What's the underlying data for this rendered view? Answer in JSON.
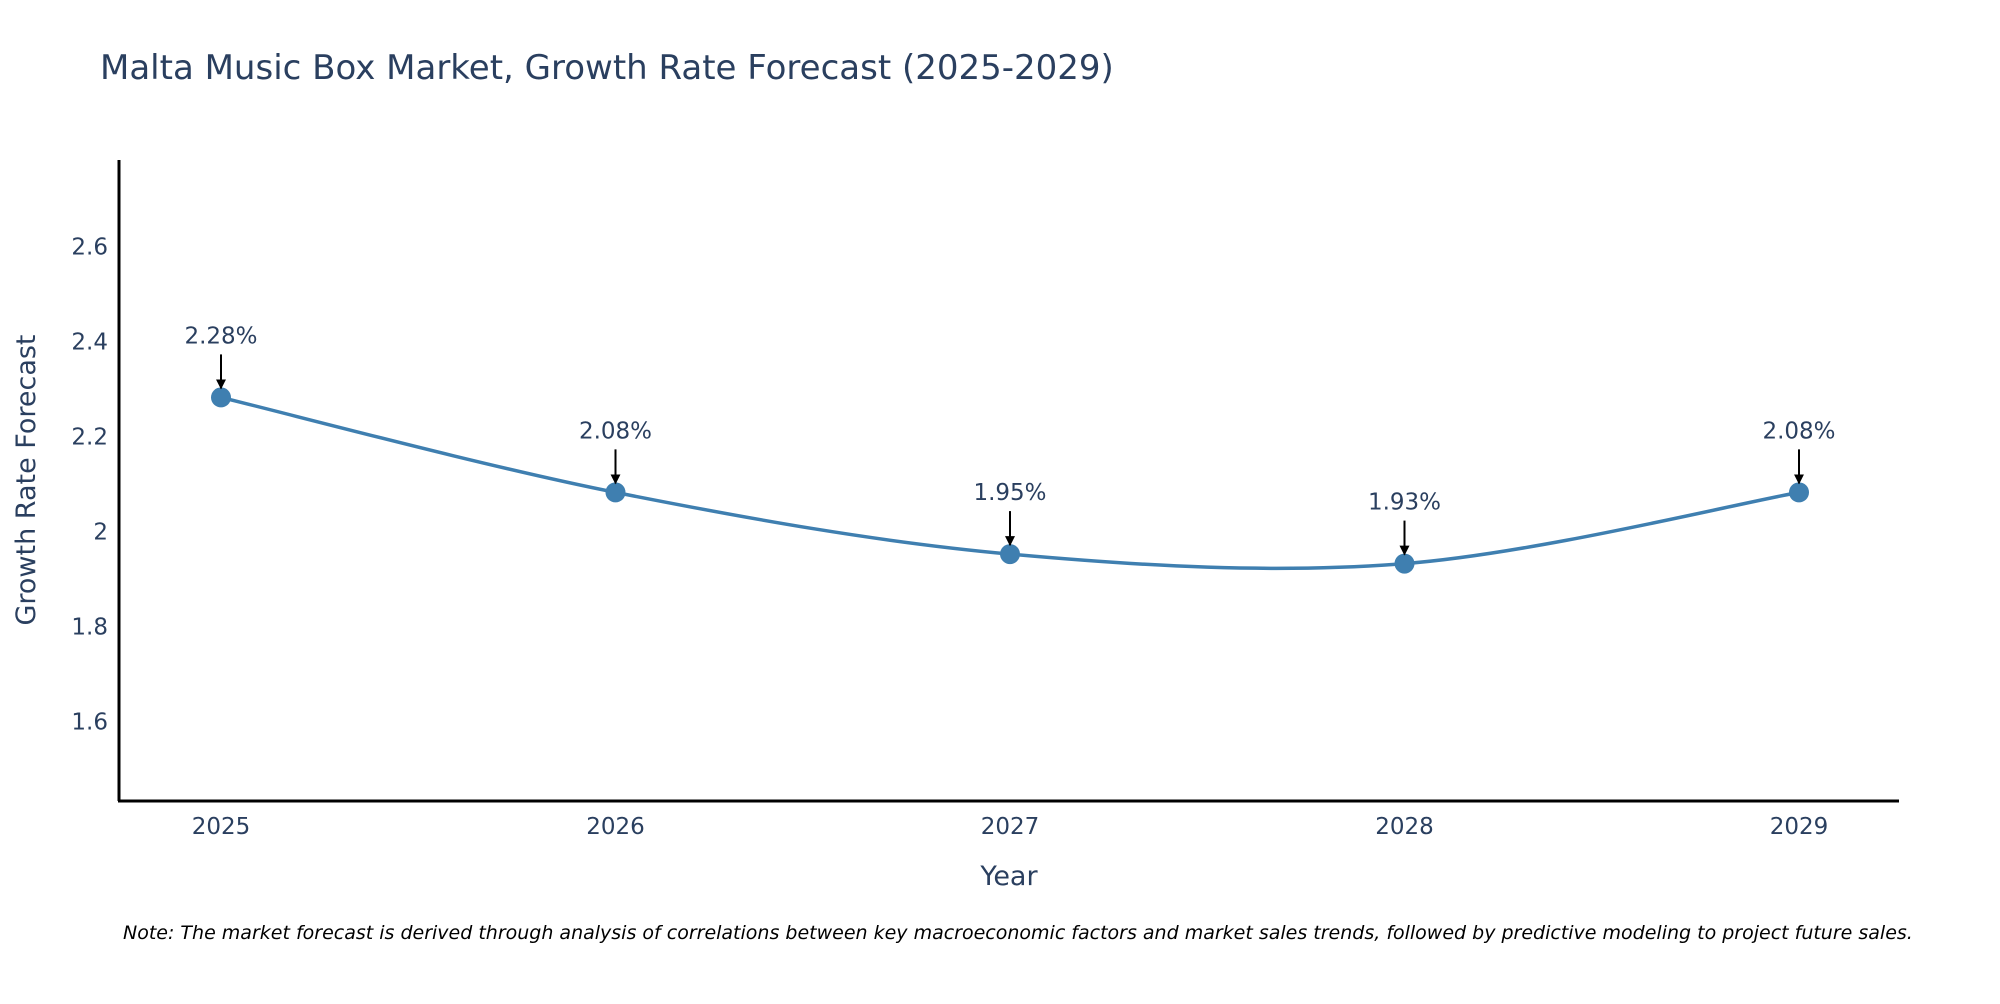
{
  "chart_data": {
    "type": "line",
    "title": "Malta Music Box Market, Growth Rate Forecast (2025-2029)",
    "xlabel": "Year",
    "ylabel": "Growth Rate Forecast",
    "categories": [
      "2025",
      "2026",
      "2027",
      "2028",
      "2029"
    ],
    "series": [
      {
        "name": "Growth Rate Forecast",
        "values": [
          2.28,
          2.08,
          1.95,
          1.93,
          2.08
        ],
        "labels": [
          "2.28%",
          "2.08%",
          "1.95%",
          "1.93%",
          "2.08%"
        ]
      }
    ],
    "ylim": [
      1.43,
      2.78
    ],
    "yticks": [
      1.6,
      1.8,
      2.0,
      2.2,
      2.4,
      2.6
    ],
    "ytick_labels": [
      "1.6",
      "1.8",
      "2",
      "2.2",
      "2.4",
      "2.6"
    ],
    "grid": false,
    "line_color": "#3f7fb0",
    "axis_color": "#000000",
    "text_color": "#2a3f5f",
    "note": "Note: The market forecast is derived through analysis of correlations between key macroeconomic factors and market sales trends, followed by predictive modeling to project future sales."
  }
}
